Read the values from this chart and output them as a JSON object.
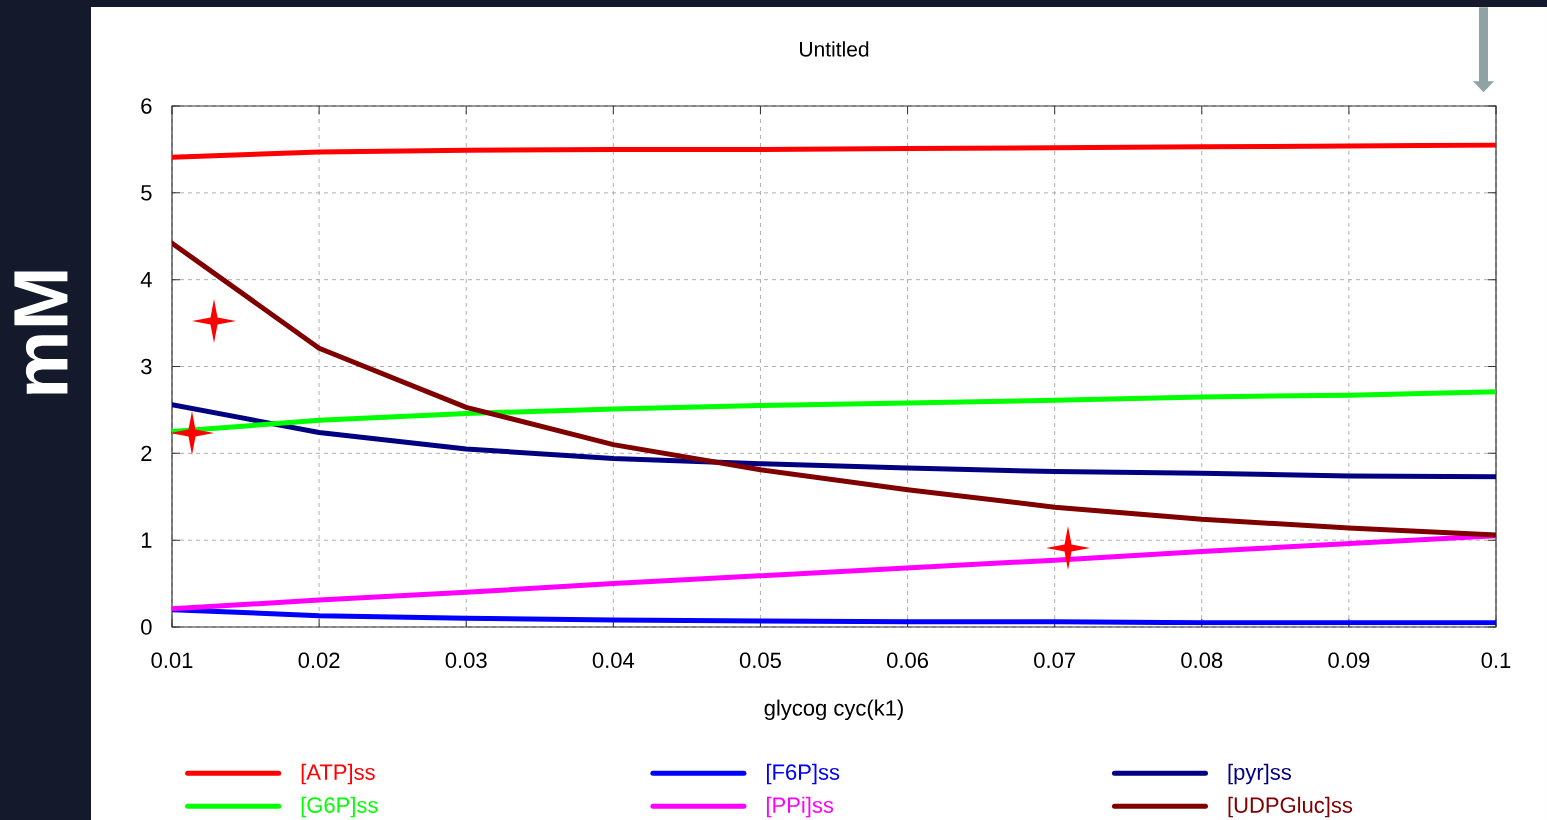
{
  "chart_data": {
    "type": "line",
    "title": "Untitled",
    "xlabel": "glycog cyc(k1)",
    "ylabel": "mM",
    "x": [
      0.01,
      0.02,
      0.03,
      0.04,
      0.05,
      0.06,
      0.07,
      0.08,
      0.09,
      0.1
    ],
    "series": [
      {
        "name": "[ATP]ss",
        "color": "#ff0000",
        "values": [
          5.41,
          5.47,
          5.49,
          5.5,
          5.5,
          5.51,
          5.52,
          5.53,
          5.54,
          5.55
        ]
      },
      {
        "name": "[F6P]ss",
        "color": "#0000ff",
        "values": [
          0.2,
          0.13,
          0.1,
          0.08,
          0.07,
          0.06,
          0.06,
          0.05,
          0.05,
          0.05
        ]
      },
      {
        "name": "[pyr]ss",
        "color": "#000080",
        "values": [
          2.56,
          2.24,
          2.05,
          1.94,
          1.88,
          1.83,
          1.79,
          1.77,
          1.74,
          1.73
        ]
      },
      {
        "name": "[G6P]ss",
        "color": "#00ff00",
        "values": [
          2.25,
          2.38,
          2.46,
          2.51,
          2.55,
          2.58,
          2.61,
          2.65,
          2.67,
          2.71
        ]
      },
      {
        "name": "[PPi]ss",
        "color": "#ff00ff",
        "values": [
          0.21,
          0.31,
          0.4,
          0.5,
          0.59,
          0.68,
          0.77,
          0.87,
          0.96,
          1.05
        ]
      },
      {
        "name": "[UDPGluc]ss",
        "color": "#800000",
        "values": [
          4.42,
          3.21,
          2.53,
          2.1,
          1.81,
          1.58,
          1.38,
          1.24,
          1.14,
          1.06
        ]
      }
    ],
    "xlim": [
      0.01,
      0.1
    ],
    "ylim": [
      0,
      6
    ],
    "xticks": [
      0.01,
      0.02,
      0.03,
      0.04,
      0.05,
      0.06,
      0.07,
      0.08,
      0.09,
      0.1
    ],
    "yticks": [
      0,
      1,
      2,
      3,
      4,
      5,
      6
    ],
    "grid": true,
    "legend": "bottom",
    "marker": "none",
    "line_style": "solid"
  }
}
